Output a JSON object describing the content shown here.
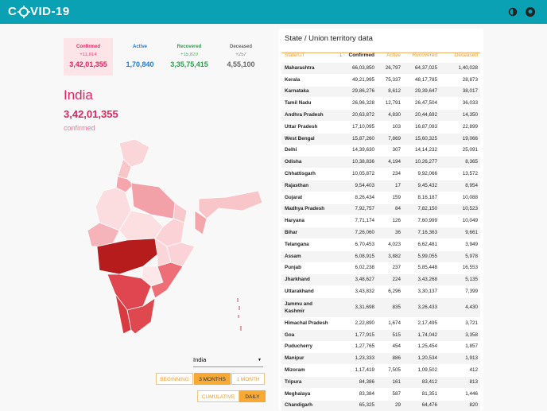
{
  "header": {
    "logo_left": "C",
    "logo_right": "VID-19"
  },
  "stats": [
    {
      "label": "Confirmed",
      "delta": "+11,814",
      "value": "3,42,01,355"
    },
    {
      "label": "Active",
      "delta": null,
      "value": "1,70,840"
    },
    {
      "label": "Recovered",
      "delta": "+15,829",
      "value": "3,35,75,415"
    },
    {
      "label": "Deceased",
      "delta": "+257",
      "value": "4,55,100"
    }
  ],
  "region": {
    "name": "India",
    "value": "3,42,01,355",
    "metric": "confirmed"
  },
  "selector": "India",
  "range_buttons": [
    "BEGINNING",
    "3 MONTHS",
    "1 MONTH"
  ],
  "mode_buttons": [
    "CUMULATIVE",
    "DAILY"
  ],
  "table": {
    "title": "State / Union territory data",
    "columns": [
      "State/UT",
      "Confirmed",
      "Active",
      "Recovered",
      "Deceased"
    ],
    "rows": [
      [
        "Maharashtra",
        "66,03,850",
        "26,797",
        "64,37,025",
        "1,40,028"
      ],
      [
        "Kerala",
        "49,21,995",
        "75,337",
        "48,17,785",
        "28,873"
      ],
      [
        "Karnataka",
        "29,86,276",
        "8,612",
        "29,39,647",
        "38,017"
      ],
      [
        "Tamil Nadu",
        "26,96,328",
        "12,791",
        "26,47,504",
        "36,033"
      ],
      [
        "Andhra Pradesh",
        "20,63,872",
        "4,830",
        "20,44,692",
        "14,350"
      ],
      [
        "Uttar Pradesh",
        "17,10,095",
        "103",
        "16,87,093",
        "22,899"
      ],
      [
        "West Bengal",
        "15,87,260",
        "7,869",
        "15,60,325",
        "19,066"
      ],
      [
        "Delhi",
        "14,39,630",
        "307",
        "14,14,232",
        "25,091"
      ],
      [
        "Odisha",
        "10,38,836",
        "4,194",
        "10,26,277",
        "8,365"
      ],
      [
        "Chhattisgarh",
        "10,05,872",
        "234",
        "9,92,066",
        "13,572"
      ],
      [
        "Rajasthan",
        "9,54,403",
        "17",
        "9,45,432",
        "8,954"
      ],
      [
        "Gujarat",
        "8,26,434",
        "159",
        "8,16,187",
        "10,088"
      ],
      [
        "Madhya Pradesh",
        "7,92,757",
        "84",
        "7,82,150",
        "10,523"
      ],
      [
        "Haryana",
        "7,71,174",
        "126",
        "7,60,999",
        "10,049"
      ],
      [
        "Bihar",
        "7,26,060",
        "36",
        "7,16,363",
        "9,661"
      ],
      [
        "Telangana",
        "6,70,453",
        "4,023",
        "6,62,481",
        "3,949"
      ],
      [
        "Assam",
        "6,08,915",
        "3,882",
        "5,99,055",
        "5,978"
      ],
      [
        "Punjab",
        "6,02,238",
        "237",
        "5,85,448",
        "16,553"
      ],
      [
        "Jharkhand",
        "3,48,627",
        "224",
        "3,43,268",
        "5,135"
      ],
      [
        "Uttarakhand",
        "3,43,832",
        "6,296",
        "3,30,137",
        "7,399"
      ],
      [
        "Jammu and Kashmir",
        "3,31,698",
        "835",
        "3,26,433",
        "4,430"
      ],
      [
        "Himachal Pradesh",
        "2,22,890",
        "1,674",
        "2,17,495",
        "3,721"
      ],
      [
        "Goa",
        "1,77,915",
        "515",
        "1,74,042",
        "3,358"
      ],
      [
        "Puducherry",
        "1,27,765",
        "454",
        "1,25,454",
        "1,857"
      ],
      [
        "Manipur",
        "1,23,333",
        "886",
        "1,20,534",
        "1,913"
      ],
      [
        "Mizoram",
        "1,17,419",
        "7,505",
        "1,09,502",
        "412"
      ],
      [
        "Tripura",
        "84,386",
        "161",
        "83,412",
        "813"
      ],
      [
        "Meghalaya",
        "83,384",
        "587",
        "81,351",
        "1,446"
      ],
      [
        "Chandigarh",
        "65,325",
        "29",
        "64,476",
        "820"
      ]
    ]
  }
}
